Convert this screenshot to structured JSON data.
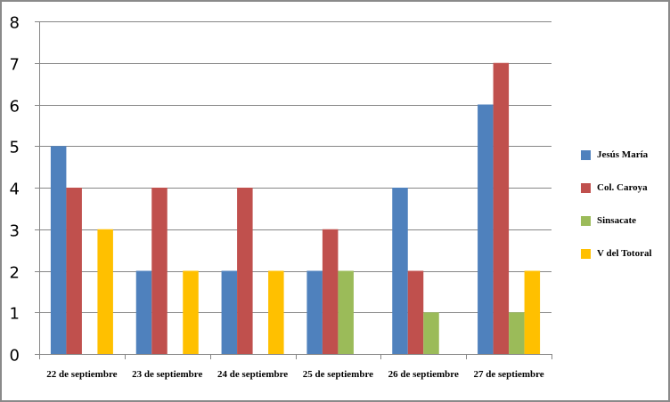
{
  "chart_data": {
    "type": "bar",
    "title": "",
    "xlabel": "",
    "ylabel": "",
    "ylim": [
      0,
      8
    ],
    "yticks": [
      0,
      1,
      2,
      3,
      4,
      5,
      6,
      7,
      8
    ],
    "grid": true,
    "legend_position": "right",
    "categories": [
      "22 de septiembre",
      "23 de septiembre",
      "24 de septiembre",
      "25 de septiembre",
      "26 de septiembre",
      "27 de septiembre"
    ],
    "series": [
      {
        "name": "Jesús María",
        "color": "#4f81bd",
        "values": [
          5,
          2,
          2,
          2,
          4,
          6
        ]
      },
      {
        "name": "Col. Caroya",
        "color": "#c0504d",
        "values": [
          4,
          4,
          4,
          3,
          2,
          7
        ]
      },
      {
        "name": "Sinsacate",
        "color": "#9bbb59",
        "values": [
          0,
          0,
          0,
          2,
          1,
          1
        ]
      },
      {
        "name": "V del Totoral",
        "color": "#ffc000",
        "values": [
          3,
          2,
          2,
          0,
          0,
          2
        ]
      }
    ]
  },
  "legend": {
    "items": [
      {
        "label": "Jesús María",
        "color": "#4f81bd"
      },
      {
        "label": "Col. Caroya",
        "color": "#c0504d"
      },
      {
        "label": "Sinsacate",
        "color": "#9bbb59"
      },
      {
        "label": "V del Totoral",
        "color": "#ffc000"
      }
    ]
  }
}
